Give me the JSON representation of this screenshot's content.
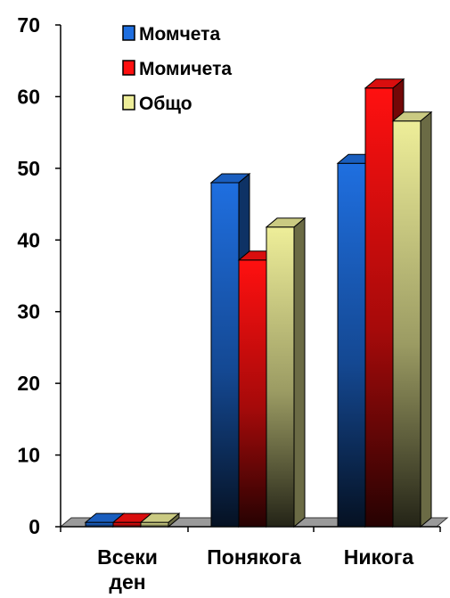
{
  "chart_data": {
    "type": "bar",
    "categories": [
      [
        "Всеки",
        "ден"
      ],
      [
        "Понякога"
      ],
      [
        "Никога"
      ]
    ],
    "series": [
      {
        "name": "Момчета",
        "values": [
          0.6,
          48,
          50.7
        ],
        "color": "#1f6fe0"
      },
      {
        "name": "Момичета",
        "values": [
          0.6,
          37.2,
          61.2
        ],
        "color": "#ff1010"
      },
      {
        "name": "Общо",
        "values": [
          0.6,
          41.8,
          56.6
        ],
        "color": "#eeee99"
      }
    ],
    "ylim": [
      0,
      70
    ],
    "yticks": [
      0,
      10,
      20,
      30,
      40,
      50,
      60,
      70
    ],
    "grid": false,
    "legend_position": "top-left"
  }
}
